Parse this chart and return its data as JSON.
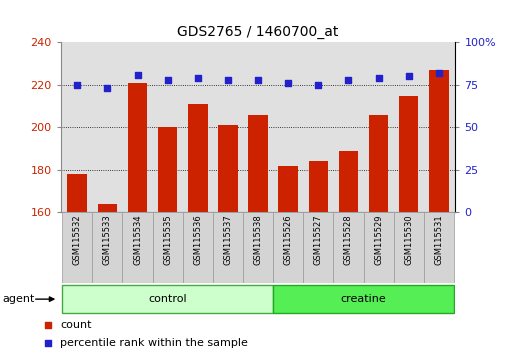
{
  "title": "GDS2765 / 1460700_at",
  "categories": [
    "GSM115532",
    "GSM115533",
    "GSM115534",
    "GSM115535",
    "GSM115536",
    "GSM115537",
    "GSM115538",
    "GSM115526",
    "GSM115527",
    "GSM115528",
    "GSM115529",
    "GSM115530",
    "GSM115531"
  ],
  "count_values": [
    178,
    164,
    221,
    200,
    211,
    201,
    206,
    182,
    184,
    189,
    206,
    215,
    227
  ],
  "percentile_values": [
    75,
    73,
    81,
    78,
    79,
    78,
    78,
    76,
    75,
    78,
    79,
    80,
    82
  ],
  "group_labels": [
    "control",
    "creatine"
  ],
  "group_ranges": [
    [
      0,
      7
    ],
    [
      7,
      13
    ]
  ],
  "group_colors_fill": [
    "#ccffcc",
    "#55ee55"
  ],
  "group_colors_edge": [
    "#44aa44",
    "#22aa22"
  ],
  "bar_color": "#cc2200",
  "dot_color": "#2222cc",
  "ylim_left": [
    160,
    240
  ],
  "ylim_right": [
    0,
    100
  ],
  "yticks_left": [
    160,
    180,
    200,
    220,
    240
  ],
  "yticks_right": [
    0,
    25,
    50,
    75,
    100
  ],
  "ytick_right_labels": [
    "0",
    "25",
    "50",
    "75",
    "100%"
  ],
  "bg_color": "#ffffff",
  "plot_bg": "#e0e0e0",
  "title_fontsize": 10,
  "tick_fontsize": 8,
  "label_fontsize": 8,
  "cat_fontsize": 6,
  "legend_fontsize": 8
}
